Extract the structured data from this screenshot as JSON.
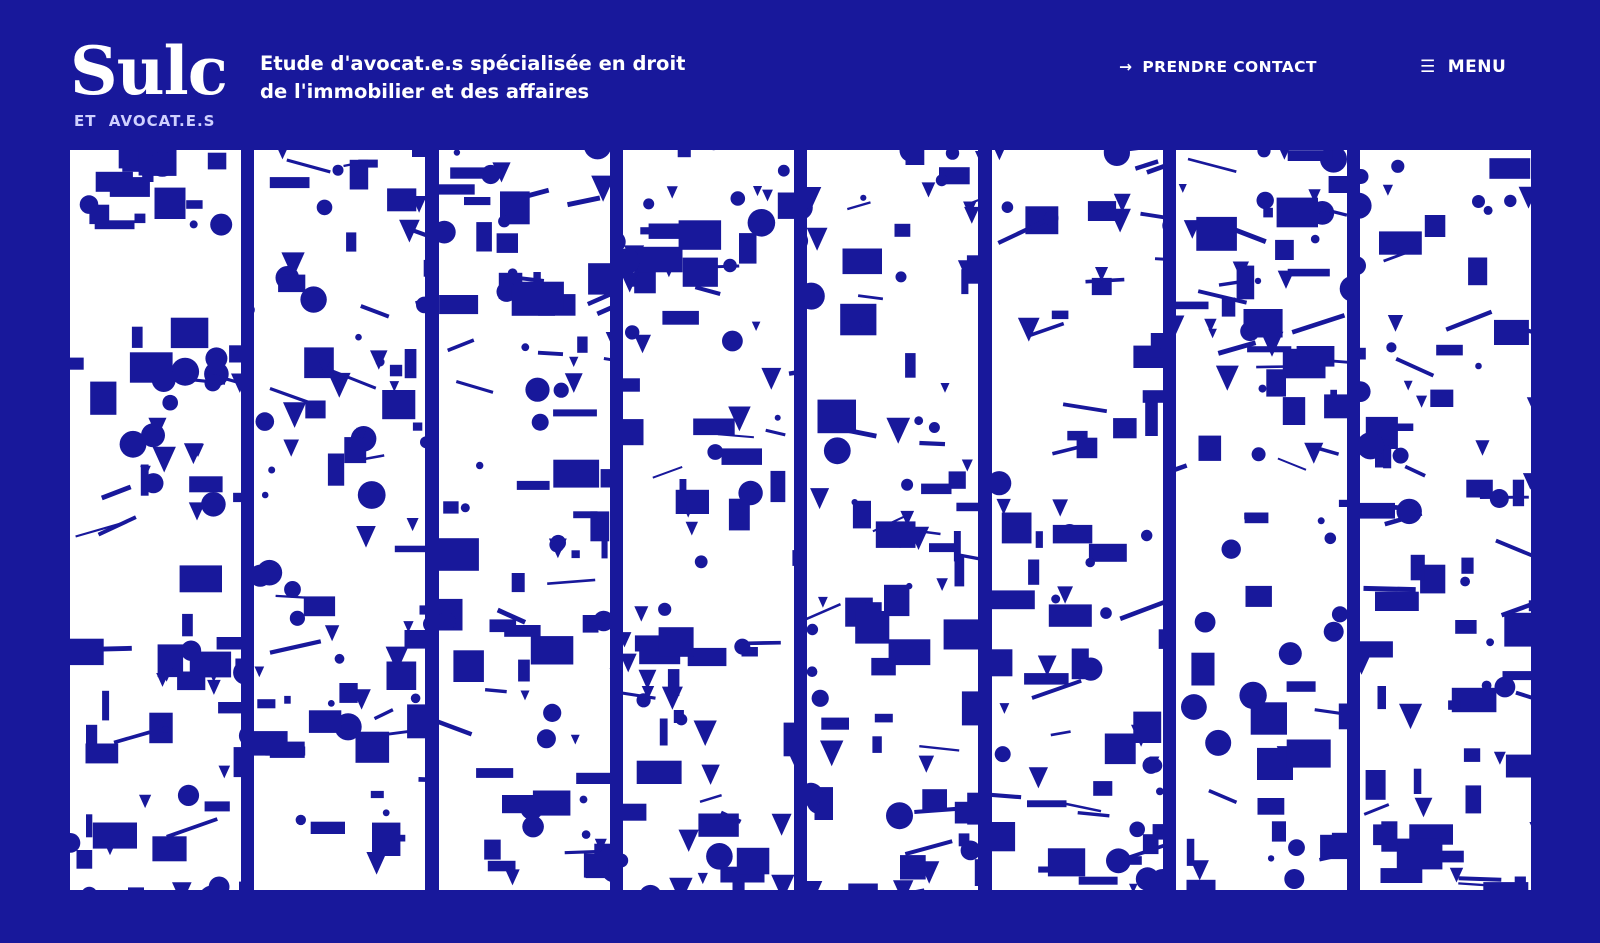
{
  "brand": {
    "name": "Sulc",
    "subtitle": "ET  AVOCAT.E.S"
  },
  "tagline": {
    "line1": "Etude d'avocat.e.s spécialisée en droit",
    "line2": "de l'immobilier et des affaires"
  },
  "nav": {
    "contact_label": "PRENDRE CONTACT",
    "contact_icon": "arrow-right-icon",
    "menu_label": "MENU",
    "menu_icon": "hamburger-icon"
  },
  "colors": {
    "brand_blue": "#18189b",
    "panel_white": "#ffffff"
  },
  "panels": {
    "count": 8
  }
}
